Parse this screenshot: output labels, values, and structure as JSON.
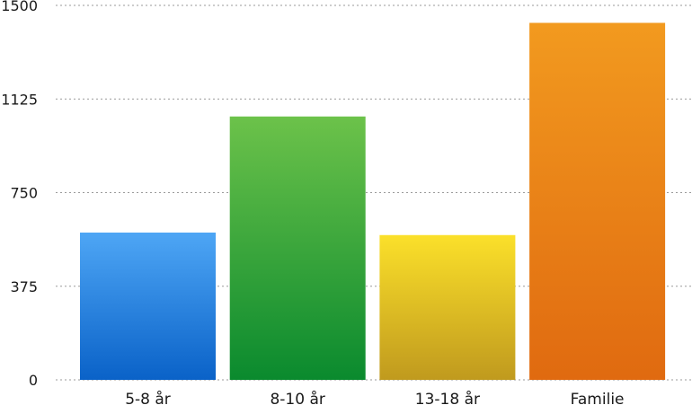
{
  "chart_data": {
    "type": "bar",
    "categories": [
      "5-8 år",
      "8-10 år",
      "13-18 år",
      "Familie"
    ],
    "values": [
      590,
      1055,
      580,
      1430
    ],
    "ylim": [
      0,
      1500
    ],
    "yticks": [
      "0",
      "375",
      "750",
      "1125",
      "1500"
    ],
    "ytick_values": [
      0,
      375,
      750,
      1125,
      1500
    ],
    "grid": true,
    "legend": "none",
    "bar_colors": [
      {
        "top": "#4ea6f5",
        "bottom": "#0a62c8"
      },
      {
        "top": "#6cc24a",
        "bottom": "#0a8a2e"
      },
      {
        "top": "#fbe02a",
        "bottom": "#c09a1e"
      },
      {
        "top": "#f29a1f",
        "bottom": "#e06a10"
      }
    ]
  }
}
